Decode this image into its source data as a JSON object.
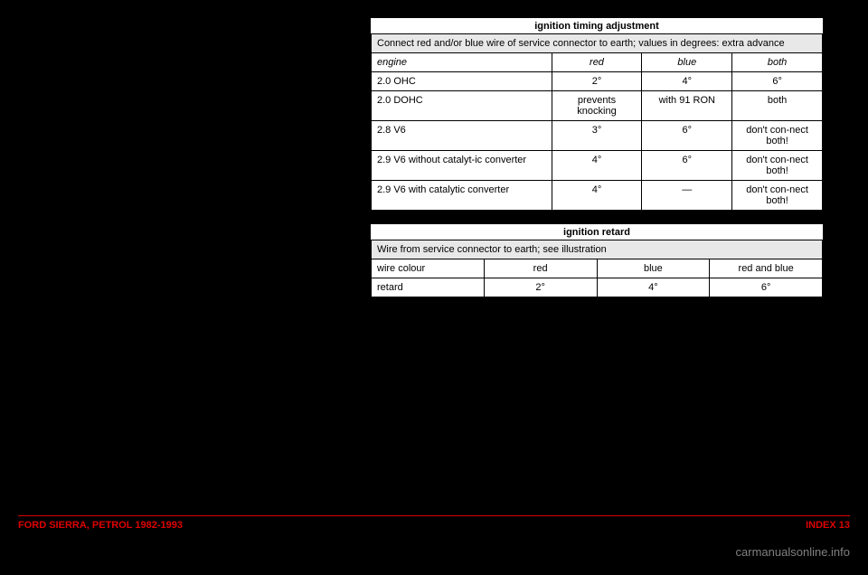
{
  "table1": {
    "title": "ignition timing adjustment",
    "headerNote": "Connect red and/or blue wire of service connector to earth; values in degrees: extra advance",
    "columns": {
      "c1": "engine",
      "c2": "red",
      "c3": "blue",
      "c4": "both"
    },
    "rows": [
      {
        "c1": "2.0 OHC",
        "c2": "2°",
        "c3": "4°",
        "c4": "6°"
      },
      {
        "c1": "2.0 DOHC",
        "c2": "prevents knocking",
        "c3": "with 91 RON",
        "c4": "both"
      },
      {
        "c1": "2.8 V6",
        "c2": "3°",
        "c3": "6°",
        "c4": "don't con-nect both!"
      },
      {
        "c1": "2.9 V6 without catalyt-ic converter",
        "c2": "4°",
        "c3": "6°",
        "c4": "don't con-nect both!"
      },
      {
        "c1": "2.9 V6 with catalytic converter",
        "c2": "4°",
        "c3": "—",
        "c4": "don't con-nect both!"
      }
    ]
  },
  "table2": {
    "title": "ignition retard",
    "headerNote": "Wire from service connector to earth; see illustration",
    "columns": {
      "c1": "wire colour",
      "c2": "red",
      "c3": "blue",
      "c4": "red and blue"
    },
    "row": {
      "c1": "retard",
      "c2": "2°",
      "c3": "4°",
      "c4": "6°"
    }
  },
  "footer": {
    "left": "FORD SIERRA, PETROL 1982-1993",
    "rightLabel": "INDEX",
    "page": "13"
  },
  "watermark": "carmanualsonline.info"
}
